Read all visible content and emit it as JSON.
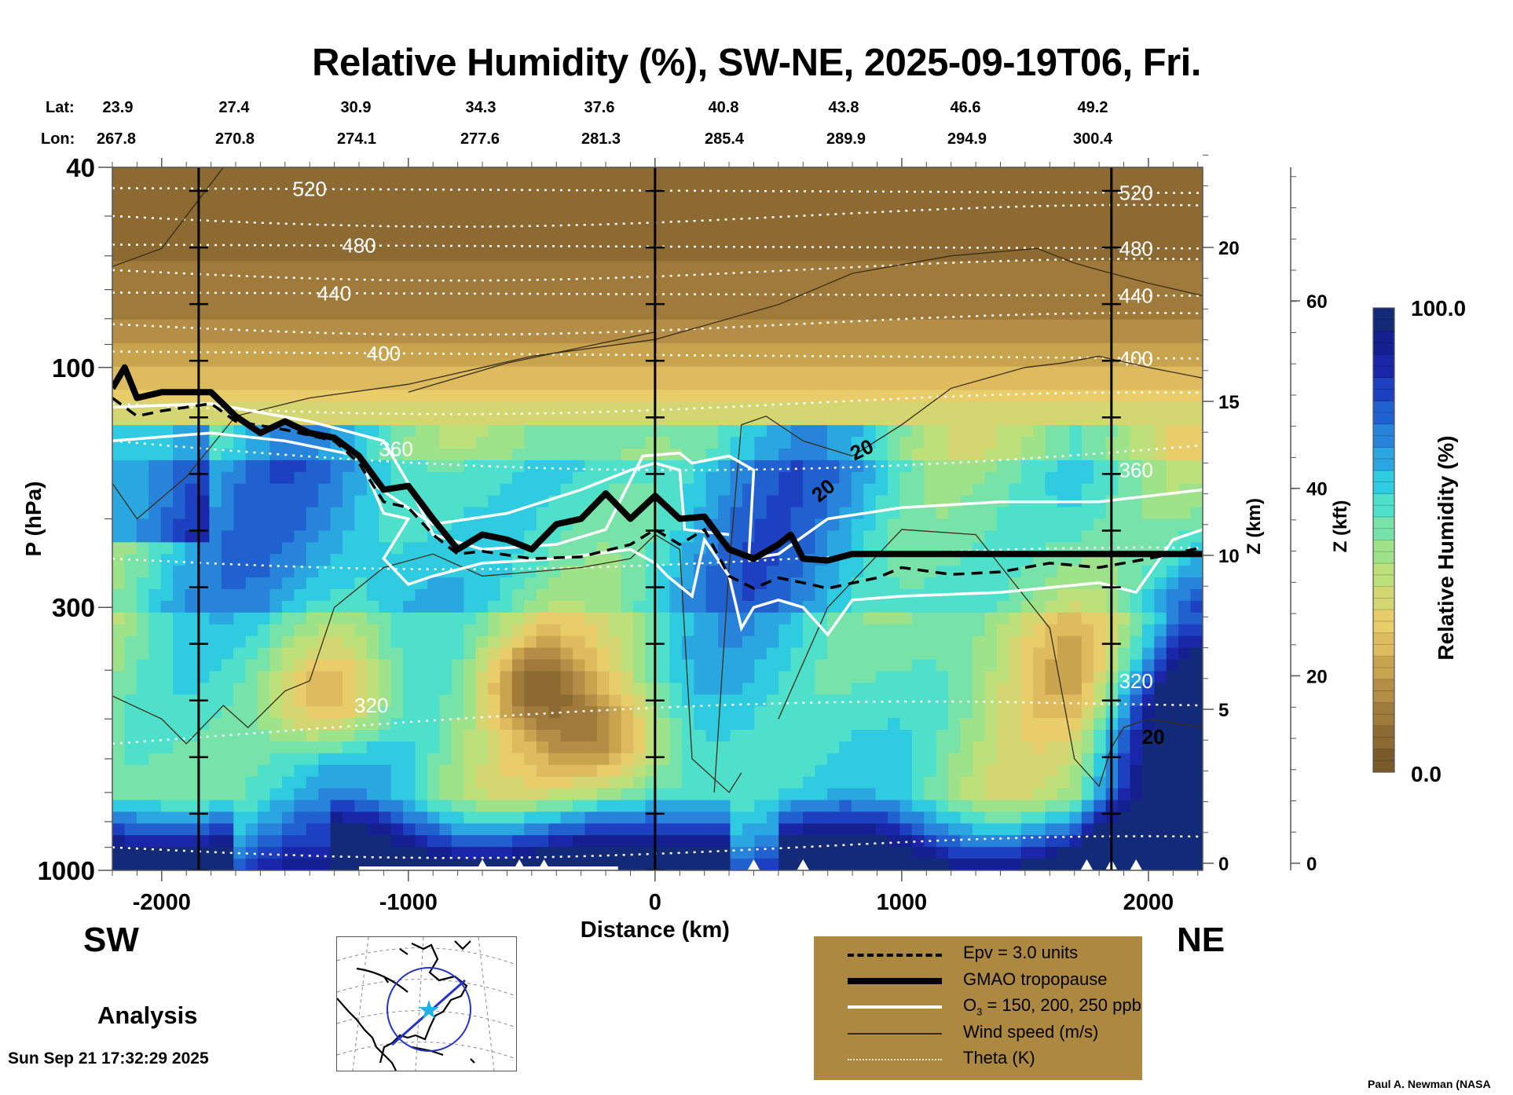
{
  "chart_data": {
    "type": "heatmap",
    "title": "Relative Humidity (%), SW-NE, 2025-09-19T06, Fri.",
    "variable": "Relative Humidity (%)",
    "xlabel": "Distance (km)",
    "ylabel": "P (hPa)",
    "right_axis_1_label": "Z (km)",
    "right_axis_2_label": "Z (kft)",
    "xlim": [
      -2200,
      2220
    ],
    "ylim_hpa": [
      1000,
      40
    ],
    "y_scale": "log",
    "x_ticks": [
      -2000,
      -1000,
      0,
      1000,
      2000
    ],
    "y_ticks": [
      40,
      100,
      300,
      1000
    ],
    "zkm_ticks": [
      0,
      5,
      10,
      15,
      20
    ],
    "zkft_ticks": [
      0,
      20,
      40,
      60
    ],
    "lat_label": "Lat:",
    "lon_label": "Lon:",
    "lat": [
      "23.9",
      "27.4",
      "30.9",
      "34.3",
      "37.6",
      "40.8",
      "43.8",
      "46.6",
      "49.2"
    ],
    "lon": [
      "267.8",
      "270.8",
      "274.1",
      "277.6",
      "281.3",
      "285.4",
      "289.9",
      "294.9",
      "300.4"
    ],
    "latlon_distance_km": [
      -2200,
      -1650,
      -1100,
      -550,
      0,
      550,
      1100,
      1650,
      2200
    ],
    "vertical_marker_lines_km": [
      -1850,
      0,
      1850
    ],
    "colorbar": {
      "label": "Relative Humidity (%)",
      "min_label": "0.0",
      "max_label": "100.0",
      "min": 0,
      "max": 100,
      "colors": [
        "#7a5a2a",
        "#8c6a32",
        "#a07a3a",
        "#b48e46",
        "#c9a44f",
        "#ddbb5e",
        "#e8cd6a",
        "#d4d672",
        "#bde07a",
        "#9ee38a",
        "#77e3a8",
        "#4fe0cc",
        "#2fcbe0",
        "#2aa6e0",
        "#2784da",
        "#2160cf",
        "#1d40c0",
        "#1a26a8",
        "#152090",
        "#122a78"
      ]
    },
    "theta_contours_K": [
      {
        "value": 520,
        "label": "520",
        "hpa_left": 44,
        "hpa_right": 45
      },
      {
        "value": 480,
        "label": "480",
        "hpa_left": 57,
        "hpa_right": 58
      },
      {
        "value": 440,
        "label": "440",
        "hpa_left": 71,
        "hpa_right": 72
      },
      {
        "value": 400,
        "label": "400",
        "hpa_left": 93,
        "hpa_right": 96
      },
      {
        "value": 360,
        "label": "360",
        "hpa_left": 140,
        "hpa_right": 160
      },
      {
        "value": 320,
        "label": "320",
        "hpa_left": 540,
        "hpa_right": 420
      }
    ],
    "wind_speed_labels": [
      "20",
      "20",
      "20"
    ],
    "tropopause_hpa": [
      [
        -2200,
        110
      ],
      [
        -2150,
        100
      ],
      [
        -2100,
        115
      ],
      [
        -2000,
        112
      ],
      [
        -1800,
        112
      ],
      [
        -1700,
        125
      ],
      [
        -1600,
        135
      ],
      [
        -1500,
        128
      ],
      [
        -1400,
        135
      ],
      [
        -1300,
        138
      ],
      [
        -1200,
        150
      ],
      [
        -1100,
        175
      ],
      [
        -1000,
        172
      ],
      [
        -900,
        200
      ],
      [
        -800,
        230
      ],
      [
        -700,
        215
      ],
      [
        -600,
        220
      ],
      [
        -500,
        230
      ],
      [
        -400,
        205
      ],
      [
        -300,
        200
      ],
      [
        -200,
        178
      ],
      [
        -100,
        200
      ],
      [
        0,
        180
      ],
      [
        100,
        200
      ],
      [
        200,
        198
      ],
      [
        300,
        230
      ],
      [
        400,
        240
      ],
      [
        500,
        225
      ],
      [
        550,
        215
      ],
      [
        600,
        240
      ],
      [
        700,
        242
      ],
      [
        800,
        235
      ],
      [
        1000,
        235
      ],
      [
        1500,
        235
      ],
      [
        2000,
        235
      ],
      [
        2220,
        235
      ]
    ],
    "epv_hpa": [
      [
        -2200,
        115
      ],
      [
        -2100,
        125
      ],
      [
        -2000,
        122
      ],
      [
        -1800,
        118
      ],
      [
        -1700,
        128
      ],
      [
        -1500,
        133
      ],
      [
        -1300,
        140
      ],
      [
        -1200,
        155
      ],
      [
        -1100,
        185
      ],
      [
        -1000,
        190
      ],
      [
        -900,
        215
      ],
      [
        -800,
        235
      ],
      [
        -700,
        232
      ],
      [
        -500,
        240
      ],
      [
        -300,
        238
      ],
      [
        -100,
        225
      ],
      [
        0,
        210
      ],
      [
        100,
        225
      ],
      [
        200,
        210
      ],
      [
        300,
        260
      ],
      [
        400,
        275
      ],
      [
        500,
        262
      ],
      [
        600,
        268
      ],
      [
        700,
        275
      ],
      [
        900,
        262
      ],
      [
        1000,
        250
      ],
      [
        1200,
        258
      ],
      [
        1400,
        255
      ],
      [
        1600,
        245
      ],
      [
        1800,
        250
      ],
      [
        2000,
        240
      ],
      [
        2220,
        228
      ]
    ]
  },
  "labels": {
    "sw": "SW",
    "ne": "NE",
    "analysis": "Analysis",
    "timestamp": "Sun Sep 21 17:32:29 2025",
    "credit": "Paul A. Newman (NASA"
  },
  "legend": {
    "background": "#ad8840",
    "items": [
      {
        "label": "Epv = 3.0 units",
        "style": "dashed-black"
      },
      {
        "label": "GMAO tropopause",
        "style": "thick-black"
      },
      {
        "label": "O3 = 150, 200, 250 ppb",
        "style": "white"
      },
      {
        "label": "Wind speed (m/s)",
        "style": "thin-dark"
      },
      {
        "label": "Theta (K)",
        "style": "dotted-white"
      }
    ]
  }
}
